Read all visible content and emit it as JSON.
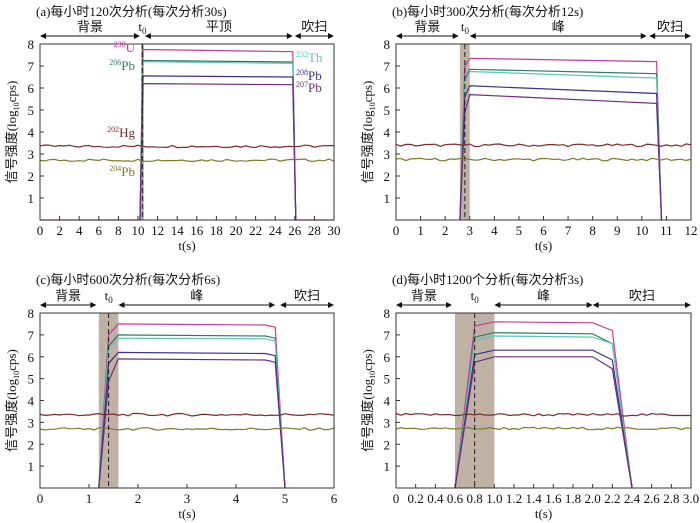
{
  "chart_data": [
    {
      "type": "line",
      "title": "(a)每小时120次分析(每次分析30s)",
      "xlabel": "t(s)",
      "ylabel": "信号强度(log10cps)",
      "xlim": [
        0,
        30
      ],
      "ylim": [
        0,
        8
      ],
      "xticks": [
        0,
        2,
        4,
        6,
        8,
        10,
        12,
        14,
        16,
        18,
        20,
        22,
        24,
        26,
        28,
        30
      ],
      "xtick_labels": [
        "0",
        "2",
        "4",
        "6",
        "8",
        "10",
        "12",
        "14",
        "16",
        "18",
        "20",
        "22",
        "24",
        "26",
        "28",
        "30"
      ],
      "yticks": [
        1,
        2,
        3,
        4,
        5,
        6,
        7,
        8
      ],
      "t0": 10.45,
      "t0_label": "t0",
      "shaded": [
        10.3,
        10.6
      ],
      "regions": [
        {
          "label": "背景",
          "from": 0,
          "to": 10.2
        },
        {
          "label": "平顶",
          "from": 10.7,
          "to": 25.8
        },
        {
          "label": "吹扫",
          "from": 26,
          "to": 30
        }
      ],
      "series": [
        {
          "name": "238U",
          "color": "#c23c9b",
          "points": [
            [
              0,
              0
            ],
            [
              10.2,
              0
            ],
            [
              10.5,
              7.75
            ],
            [
              25.8,
              7.65
            ],
            [
              26.1,
              0
            ],
            [
              30,
              0
            ]
          ]
        },
        {
          "name": "206Pb",
          "color": "#2e7a6a",
          "points": [
            [
              10.2,
              0
            ],
            [
              10.5,
              7.25
            ],
            [
              25.8,
              7.18
            ],
            [
              26.1,
              0
            ]
          ]
        },
        {
          "name": "232Th",
          "color": "#5fc7b3",
          "points": [
            [
              10.2,
              0
            ],
            [
              10.5,
              7.2
            ],
            [
              25.8,
              7.12
            ],
            [
              26.1,
              0
            ]
          ]
        },
        {
          "name": "208Pb",
          "color": "#3b318c",
          "points": [
            [
              10.2,
              0
            ],
            [
              10.5,
              6.55
            ],
            [
              25.8,
              6.5
            ],
            [
              26.1,
              0
            ]
          ]
        },
        {
          "name": "207Pb",
          "color": "#6d2d7c",
          "points": [
            [
              10.2,
              0
            ],
            [
              10.5,
              6.2
            ],
            [
              25.8,
              6.15
            ],
            [
              26.1,
              0
            ]
          ]
        },
        {
          "name": "202Hg",
          "color": "#7d2b2e",
          "background": 3.35
        },
        {
          "name": "204Pb",
          "color": "#7d7a2c",
          "background": 2.72
        }
      ],
      "annotations": [
        {
          "mass": "238",
          "el": "U",
          "color": "#c23c9b"
        },
        {
          "mass": "206",
          "el": "Pb",
          "color": "#2e7a6a"
        },
        {
          "mass": "232",
          "el": "Th",
          "color": "#5fc7b3"
        },
        {
          "mass": "208",
          "el": "Pb",
          "color": "#3b318c"
        },
        {
          "mass": "207",
          "el": "Pb",
          "color": "#6d2d7c"
        },
        {
          "mass": "202",
          "el": "Hg",
          "color": "#7d2b2e"
        },
        {
          "mass": "204",
          "el": "Pb",
          "color": "#7d7a2c"
        }
      ]
    },
    {
      "type": "line",
      "title": "(b)每小时300次分析(每次分析12s)",
      "xlabel": "t(s)",
      "ylabel": "信号强度(log10cps)",
      "xlim": [
        0,
        12
      ],
      "ylim": [
        0,
        8
      ],
      "xticks": [
        0,
        1,
        2,
        3,
        4,
        5,
        6,
        7,
        8,
        9,
        10,
        11,
        12
      ],
      "xtick_labels": [
        "0",
        "1",
        "2",
        "3",
        "4",
        "5",
        "6",
        "7",
        "8",
        "9",
        "10",
        "11",
        "12"
      ],
      "yticks": [
        1,
        2,
        3,
        4,
        5,
        6,
        7,
        8
      ],
      "t0": 2.8,
      "t0_label": "t0",
      "shaded": [
        2.6,
        3.0
      ],
      "regions": [
        {
          "label": "背景",
          "from": 0,
          "to": 2.55
        },
        {
          "label": "峰",
          "from": 3.0,
          "to": 10.2
        },
        {
          "label": "吹扫",
          "from": 10.3,
          "to": 12
        }
      ],
      "series": [
        {
          "name": "238U",
          "color": "#c23c9b",
          "points": [
            [
              2.6,
              0
            ],
            [
              2.8,
              7.0
            ],
            [
              3.0,
              7.35
            ],
            [
              10.6,
              7.2
            ],
            [
              10.8,
              0
            ]
          ]
        },
        {
          "name": "206Pb",
          "color": "#2e7a6a",
          "points": [
            [
              2.6,
              0
            ],
            [
              2.8,
              6.4
            ],
            [
              3.0,
              6.85
            ],
            [
              10.6,
              6.65
            ],
            [
              10.8,
              0
            ]
          ]
        },
        {
          "name": "232Th",
          "color": "#5fc7b3",
          "points": [
            [
              2.6,
              0
            ],
            [
              2.8,
              6.3
            ],
            [
              3.0,
              6.75
            ],
            [
              10.6,
              6.45
            ],
            [
              10.8,
              0
            ]
          ]
        },
        {
          "name": "208Pb",
          "color": "#3b318c",
          "points": [
            [
              2.6,
              0
            ],
            [
              2.8,
              5.6
            ],
            [
              3.0,
              6.1
            ],
            [
              10.6,
              5.75
            ],
            [
              10.8,
              0
            ]
          ]
        },
        {
          "name": "207Pb",
          "color": "#6d2d7c",
          "points": [
            [
              2.6,
              0
            ],
            [
              2.8,
              4.9
            ],
            [
              3.0,
              5.7
            ],
            [
              10.6,
              5.3
            ],
            [
              10.8,
              0
            ]
          ]
        },
        {
          "name": "202Hg",
          "color": "#7d2b2e",
          "background": 3.4
        },
        {
          "name": "204Pb",
          "color": "#7d7a2c",
          "background": 2.75
        }
      ]
    },
    {
      "type": "line",
      "title": "(c)每小时600次分析(每次分析6s)",
      "xlabel": "t(s)",
      "ylabel": "信号强度(log10cps)",
      "xlim": [
        0,
        6
      ],
      "ylim": [
        0,
        8
      ],
      "xticks": [
        0,
        1,
        2,
        3,
        4,
        5,
        6
      ],
      "xtick_labels": [
        "0",
        "1",
        "2",
        "3",
        "4",
        "5",
        "6"
      ],
      "yticks": [
        1,
        2,
        3,
        4,
        5,
        6,
        7,
        8
      ],
      "t0": 1.4,
      "t0_label": "t0",
      "shaded": [
        1.2,
        1.6
      ],
      "regions": [
        {
          "label": "背景",
          "from": 0,
          "to": 1.15
        },
        {
          "label": "峰",
          "from": 1.6,
          "to": 4.8
        },
        {
          "label": "吹扫",
          "from": 4.9,
          "to": 6
        }
      ],
      "series": [
        {
          "name": "238U",
          "color": "#c23c9b",
          "points": [
            [
              1.2,
              0
            ],
            [
              1.4,
              7.0
            ],
            [
              1.6,
              7.5
            ],
            [
              4.6,
              7.45
            ],
            [
              4.8,
              7.35
            ],
            [
              5.0,
              0
            ]
          ]
        },
        {
          "name": "206Pb",
          "color": "#2e7a6a",
          "points": [
            [
              1.2,
              0
            ],
            [
              1.4,
              6.5
            ],
            [
              1.6,
              7.0
            ],
            [
              4.6,
              6.95
            ],
            [
              4.8,
              6.85
            ],
            [
              5.0,
              0
            ]
          ]
        },
        {
          "name": "232Th",
          "color": "#5fc7b3",
          "points": [
            [
              1.2,
              0
            ],
            [
              1.4,
              6.4
            ],
            [
              1.6,
              6.85
            ],
            [
              4.6,
              6.82
            ],
            [
              4.8,
              6.72
            ],
            [
              5.0,
              0
            ]
          ]
        },
        {
          "name": "208Pb",
          "color": "#3b318c",
          "points": [
            [
              1.2,
              0
            ],
            [
              1.4,
              5.7
            ],
            [
              1.6,
              6.2
            ],
            [
              4.6,
              6.15
            ],
            [
              4.8,
              6.05
            ],
            [
              5.0,
              0
            ]
          ]
        },
        {
          "name": "207Pb",
          "color": "#6d2d7c",
          "points": [
            [
              1.2,
              0
            ],
            [
              1.4,
              4.9
            ],
            [
              1.6,
              5.9
            ],
            [
              4.6,
              5.85
            ],
            [
              4.8,
              5.75
            ],
            [
              5.0,
              0
            ]
          ]
        },
        {
          "name": "202Hg",
          "color": "#7d2b2e",
          "background": 3.35
        },
        {
          "name": "204Pb",
          "color": "#7d7a2c",
          "background": 2.7
        }
      ]
    },
    {
      "type": "line",
      "title": "(d)每小时1200个分析(每次分析3s)",
      "xlabel": "t(s)",
      "ylabel": "信号强度(log10cps)",
      "xlim": [
        0,
        3
      ],
      "ylim": [
        0,
        8
      ],
      "xticks": [
        0,
        0.2,
        0.4,
        0.6,
        0.8,
        1.0,
        1.2,
        1.4,
        1.6,
        1.8,
        2.0,
        2.2,
        2.4,
        2.6,
        2.8,
        3.0
      ],
      "xtick_labels": [
        "0",
        "0.2",
        "0.4",
        "0.6",
        "0.8",
        "1.0",
        "1.2",
        "1.4",
        "1.6",
        "1.8",
        "2.0",
        "2.2",
        "2.4",
        "2.6",
        "2.8",
        "3.0"
      ],
      "yticks": [
        1,
        2,
        3,
        4,
        5,
        6,
        7,
        8
      ],
      "t0": 0.8,
      "t0_label": "t0",
      "shaded": [
        0.6,
        1.0
      ],
      "regions": [
        {
          "label": "背景",
          "from": 0,
          "to": 0.57
        },
        {
          "label": "峰",
          "from": 1.0,
          "to": 2.0
        },
        {
          "label": "吹扫",
          "from": 2.0,
          "to": 3.0
        }
      ],
      "series": [
        {
          "name": "238U",
          "color": "#c23c9b",
          "points": [
            [
              0.6,
              0
            ],
            [
              0.8,
              7.4
            ],
            [
              1.0,
              7.6
            ],
            [
              2.0,
              7.55
            ],
            [
              2.2,
              7.2
            ],
            [
              2.4,
              0
            ]
          ]
        },
        {
          "name": "206Pb",
          "color": "#2e7a6a",
          "points": [
            [
              0.6,
              0
            ],
            [
              0.8,
              6.9
            ],
            [
              1.0,
              7.1
            ],
            [
              2.0,
              7.05
            ],
            [
              2.2,
              6.6
            ],
            [
              2.4,
              0
            ]
          ]
        },
        {
          "name": "232Th",
          "color": "#5fc7b3",
          "points": [
            [
              0.6,
              0
            ],
            [
              0.8,
              6.75
            ],
            [
              1.0,
              6.95
            ],
            [
              2.0,
              6.9
            ],
            [
              2.2,
              6.6
            ],
            [
              2.4,
              0
            ]
          ]
        },
        {
          "name": "208Pb",
          "color": "#3b318c",
          "points": [
            [
              0.6,
              0
            ],
            [
              0.8,
              6.1
            ],
            [
              1.0,
              6.3
            ],
            [
              2.0,
              6.3
            ],
            [
              2.2,
              5.85
            ],
            [
              2.4,
              0
            ]
          ]
        },
        {
          "name": "207Pb",
          "color": "#6d2d7c",
          "points": [
            [
              0.6,
              0
            ],
            [
              0.8,
              5.75
            ],
            [
              1.0,
              6.0
            ],
            [
              2.0,
              6.0
            ],
            [
              2.2,
              5.45
            ],
            [
              2.4,
              0
            ]
          ]
        },
        {
          "name": "202Hg",
          "color": "#7d2b2e",
          "background": 3.35
        },
        {
          "name": "204Pb",
          "color": "#7d7a2c",
          "background": 2.72
        }
      ]
    }
  ]
}
